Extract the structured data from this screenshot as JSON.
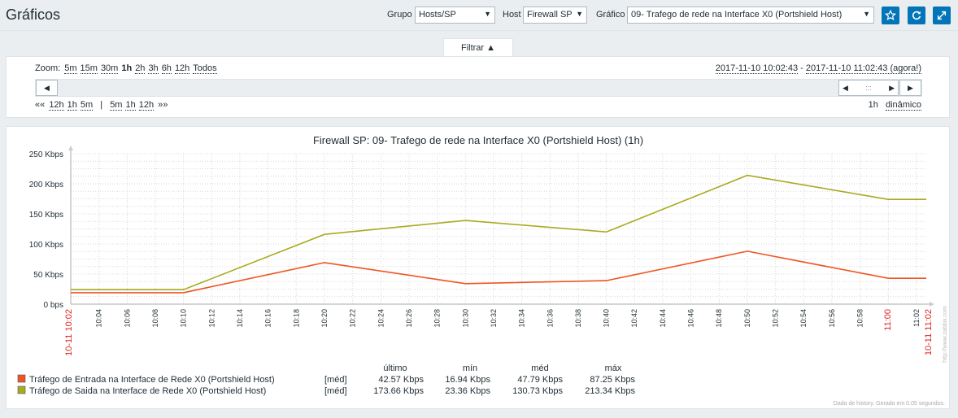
{
  "header": {
    "title": "Gráficos",
    "group_label": "Grupo",
    "group_value": "Hosts/SP",
    "host_label": "Host",
    "host_value": "Firewall SP",
    "graph_label": "Gráfico",
    "graph_value": "09- Trafego de rede na Interface X0 (Portshield Host)"
  },
  "filter": {
    "tab_label": "Filtrar ▲",
    "zoom_label": "Zoom:",
    "zoom_options": [
      "5m",
      "15m",
      "30m",
      "1h",
      "2h",
      "3h",
      "6h",
      "12h",
      "Todos"
    ],
    "zoom_active": "1h",
    "period_from": "2017-11-10 10:02:43",
    "period_sep": " - ",
    "period_to": "2017-11-10 11:02:43 (agora!)",
    "nav_back_prefix": "««",
    "nav_back": [
      "12h",
      "1h",
      "5m"
    ],
    "nav_sep": "|",
    "nav_forward": [
      "5m",
      "1h",
      "12h"
    ],
    "nav_forward_suffix": "»»",
    "period_length": "1h",
    "period_mode": "dinâmico",
    "handle_grip": ":::"
  },
  "chart_data": {
    "type": "line",
    "title": "Firewall SP: 09- Trafego de rede na Interface  X0 (Portshield Host) (1h)",
    "y_ticks": [
      "0 bps",
      "50 Kbps",
      "100 Kbps",
      "150 Kbps",
      "200 Kbps",
      "250 Kbps"
    ],
    "ylim": [
      0,
      250
    ],
    "y_unit": "Kbps",
    "x_start_label": "10-11 10:02",
    "x_end_label": "10-11 11:02",
    "x_hour_label": "11:00",
    "x_ticks": [
      "10:04",
      "10:06",
      "10:08",
      "10:10",
      "10:12",
      "10:14",
      "10:16",
      "10:18",
      "10:20",
      "10:22",
      "10:24",
      "10:26",
      "10:28",
      "10:30",
      "10:32",
      "10:34",
      "10:36",
      "10:38",
      "10:40",
      "10:42",
      "10:44",
      "10:46",
      "10:48",
      "10:50",
      "10:52",
      "10:54",
      "10:56",
      "10:58",
      "11:00",
      "11:02"
    ],
    "xlim_minutes": [
      2.0,
      62.7
    ],
    "series": [
      {
        "name": "Tráfego de Entrada na Interface de Rede X0 (Portshield Host)",
        "color": "#ee5522",
        "x_minutes": [
          2.0,
          10.0,
          20.0,
          30.0,
          40.0,
          50.0,
          60.0,
          62.7
        ],
        "values": [
          19,
          19,
          69,
          34,
          39,
          88,
          43,
          43
        ]
      },
      {
        "name": "Tráfego de Saída na Interface de Rede X0 (Portshield Host)",
        "color": "#aaaa22",
        "x_minutes": [
          2.0,
          10.0,
          20.0,
          30.0,
          40.0,
          50.0,
          60.0,
          62.7
        ],
        "values": [
          24,
          24,
          116,
          139,
          120,
          214,
          174,
          174
        ]
      }
    ],
    "legend_headers": [
      "último",
      "mín",
      "méd",
      "máx"
    ],
    "legend_rows": [
      {
        "name": "Tráfego de Entrada na Interface de Rede X0 (Portshield Host)",
        "func": "[méd]",
        "last": "42.57 Kbps",
        "min": "16.94 Kbps",
        "avg": "47.79 Kbps",
        "max": "87.25 Kbps"
      },
      {
        "name": "Tráfego de Saida na Interface de Rede X0 (Portshield Host)",
        "func": "[méd]",
        "last": "173.66 Kbps",
        "min": "23.36 Kbps",
        "avg": "130.73 Kbps",
        "max": "213.34 Kbps"
      }
    ],
    "footer_note": "Dado de history. Gerado em 0.05 segundos.",
    "watermark": "http://www.zabbix.com"
  },
  "colors": {
    "accent": "#0275b8",
    "series_in": "#ee5522",
    "series_out": "#aaaa22",
    "time_label_red": "#dd2222"
  }
}
